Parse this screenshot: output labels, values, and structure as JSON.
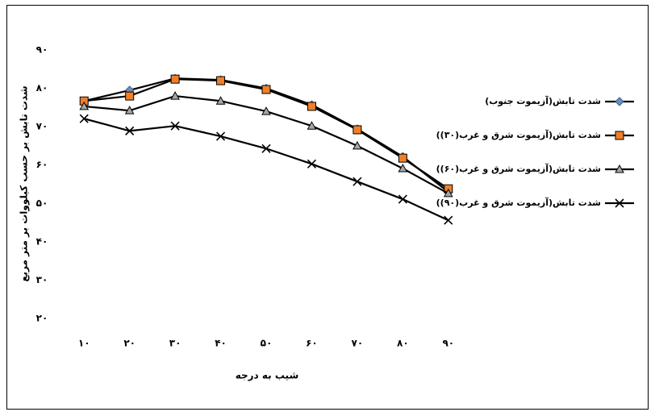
{
  "chart_data": {
    "type": "line",
    "y_label": "شدت تابش بر حسب کیلووات بر متر مربع",
    "x_label": "شیب به درجه",
    "categories": [
      "۱۰",
      "۲۰",
      "۳۰",
      "۴۰",
      "۵۰",
      "۶۰",
      "۷۰",
      "۸۰",
      "۹۰"
    ],
    "ylim": [
      20,
      90
    ],
    "yticks": [
      {
        "value": 20,
        "label": "۲۰"
      },
      {
        "value": 30,
        "label": "۳۰"
      },
      {
        "value": 40,
        "label": "۴۰"
      },
      {
        "value": 50,
        "label": "۵۰"
      },
      {
        "value": 60,
        "label": "۶۰"
      },
      {
        "value": 70,
        "label": "۷۰"
      },
      {
        "value": 80,
        "label": "۸۰"
      },
      {
        "value": 90,
        "label": "۹۰"
      }
    ],
    "grid": false,
    "legend": "right",
    "series": [
      {
        "name": "شدت تابش(آزیموت جنوب)",
        "color": "#6f8fb8",
        "marker": "diamond",
        "values": [
          76.7,
          79.5,
          82.6,
          82.2,
          80,
          75.7,
          69.4,
          62.2,
          53
        ]
      },
      {
        "name": "شدت تابش(آزیموت شرق و غرب(۳۰))",
        "color": "#f07f2a",
        "marker": "square",
        "values": [
          76.7,
          78,
          82.4,
          82,
          79.7,
          75.3,
          69.2,
          61.8,
          53.8
        ]
      },
      {
        "name": "شدت تابش(آزیموت شرق و غرب(۶۰))",
        "color": "#a6a6a6",
        "marker": "triangle",
        "values": [
          75.3,
          74.2,
          78,
          76.7,
          74,
          70.2,
          65,
          59.1,
          52.6
        ]
      },
      {
        "name": "شدت تابش(آزیموت شرق و غرب(۹۰))",
        "color": "#000000",
        "marker": "x",
        "values": [
          72.1,
          68.9,
          70.2,
          67.5,
          64.3,
          60.3,
          55.7,
          51.1,
          45.6
        ]
      }
    ]
  }
}
